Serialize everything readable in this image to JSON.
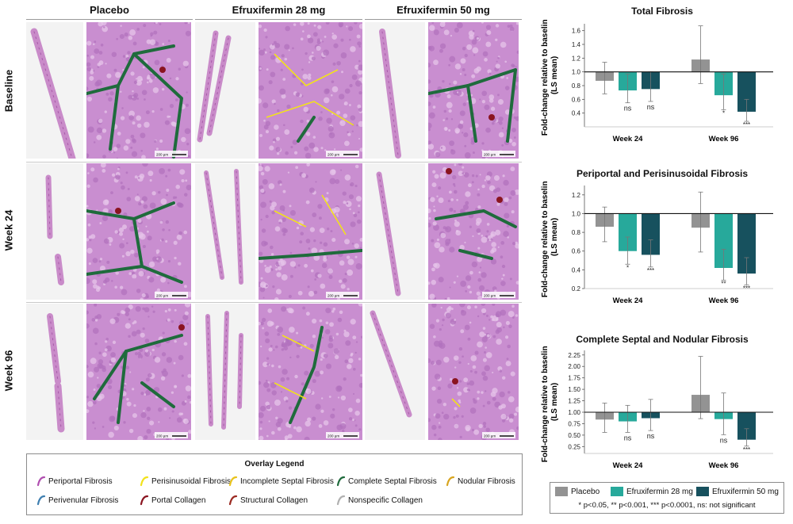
{
  "columns": [
    "Placebo",
    "Efruxifermin 28 mg",
    "Efruxifermin 50 mg"
  ],
  "rows": [
    "Baseline",
    "Week 24",
    "Week 96"
  ],
  "scale_bar_label": "200 µm",
  "overlay_legend": {
    "title": "Overlay Legend",
    "items": [
      {
        "label": "Periportal Fibrosis",
        "color": "#b04fb0"
      },
      {
        "label": "Perisinusoidal Fibrosis",
        "color": "#f2e21a"
      },
      {
        "label": "Incomplete Septal Fibrosis",
        "color": "#e9c31b"
      },
      {
        "label": "Complete Septal Fibrosis",
        "color": "#1f6b3c"
      },
      {
        "label": "Nodular Fibrosis",
        "color": "#d8a520"
      },
      {
        "label": "Perivenular Fibrosis",
        "color": "#3f7fb0"
      },
      {
        "label": "Portal Collagen",
        "color": "#8a1420"
      },
      {
        "label": "Structural Collagen",
        "color": "#9b2a22"
      },
      {
        "label": "Nonspecific Collagen",
        "color": "#b0b0b0"
      }
    ]
  },
  "bar_legend": {
    "items": [
      {
        "label": "Placebo",
        "color": "#939393"
      },
      {
        "label": "Efruxifermin 28 mg",
        "color": "#27a99b"
      },
      {
        "label": "Efruxifermin 50 mg",
        "color": "#17515e"
      }
    ],
    "note": "* p<0.05, ** p<0.001, *** p<0.0001, ns: not significant"
  },
  "chart_data": [
    {
      "type": "bar",
      "title": "Total Fibrosis",
      "ylabel": "Fold-change relative to baseline (LS mean)",
      "categories": [
        "Week 24",
        "Week 96"
      ],
      "ylim": [
        0.2,
        1.7
      ],
      "yticks": [
        "0.4",
        "0.6",
        "0.8",
        "1.0",
        "1.2",
        "1.4",
        "1.6"
      ],
      "series": [
        {
          "name": "Placebo",
          "values": [
            0.87,
            1.18
          ],
          "err_low": [
            0.68,
            0.83
          ],
          "err_high": [
            1.14,
            1.67
          ],
          "sig": [
            "",
            ""
          ]
        },
        {
          "name": "Efruxifermin 28 mg",
          "values": [
            0.73,
            0.66
          ],
          "err_low": [
            0.55,
            0.45
          ],
          "err_high": [
            0.97,
            0.97
          ],
          "sig": [
            "ns",
            "*"
          ]
        },
        {
          "name": "Efruxifermin 50 mg",
          "values": [
            0.75,
            0.42
          ],
          "err_low": [
            0.57,
            0.28
          ],
          "err_high": [
            1.0,
            0.6
          ],
          "sig": [
            "ns",
            "***"
          ]
        }
      ]
    },
    {
      "type": "bar",
      "title": "Periportal and Perisinusoidal Fibrosis",
      "ylabel": "Fold-change relative to baseline (LS mean)",
      "categories": [
        "Week 24",
        "Week 96"
      ],
      "ylim": [
        0.2,
        1.3
      ],
      "yticks": [
        "0.2",
        "0.4",
        "0.6",
        "0.8",
        "1.0",
        "1.2"
      ],
      "series": [
        {
          "name": "Placebo",
          "values": [
            0.86,
            0.85
          ],
          "err_low": [
            0.7,
            0.59
          ],
          "err_high": [
            1.07,
            1.23
          ],
          "sig": [
            "",
            ""
          ]
        },
        {
          "name": "Efruxifermin 28 mg",
          "values": [
            0.6,
            0.42
          ],
          "err_low": [
            0.46,
            0.29
          ],
          "err_high": [
            0.75,
            0.62
          ],
          "sig": [
            "*",
            "**"
          ]
        },
        {
          "name": "Efruxifermin 50 mg",
          "values": [
            0.56,
            0.36
          ],
          "err_low": [
            0.43,
            0.24
          ],
          "err_high": [
            0.72,
            0.53
          ],
          "sig": [
            "***",
            "***"
          ]
        }
      ]
    },
    {
      "type": "bar",
      "title": "Complete Septal and Nodular Fibrosis",
      "ylabel": "Fold-change relative to baseline (LS mean)",
      "categories": [
        "Week 24",
        "Week 96"
      ],
      "ylim": [
        0.1,
        2.35
      ],
      "yticks": [
        "0.25",
        "0.50",
        "0.75",
        "1.00",
        "1.25",
        "1.50",
        "1.75",
        "2.00",
        "2.25"
      ],
      "series": [
        {
          "name": "Placebo",
          "values": [
            0.84,
            1.38
          ],
          "err_low": [
            0.56,
            0.86
          ],
          "err_high": [
            1.2,
            2.22
          ],
          "sig": [
            "",
            ""
          ]
        },
        {
          "name": "Efruxifermin 28 mg",
          "values": [
            0.8,
            0.85
          ],
          "err_low": [
            0.56,
            0.51
          ],
          "err_high": [
            1.15,
            1.42
          ],
          "sig": [
            "ns",
            "ns"
          ]
        },
        {
          "name": "Efruxifermin 50 mg",
          "values": [
            0.87,
            0.4
          ],
          "err_low": [
            0.6,
            0.26
          ],
          "err_high": [
            1.28,
            0.64
          ],
          "sig": [
            "ns",
            "***"
          ]
        }
      ]
    }
  ]
}
